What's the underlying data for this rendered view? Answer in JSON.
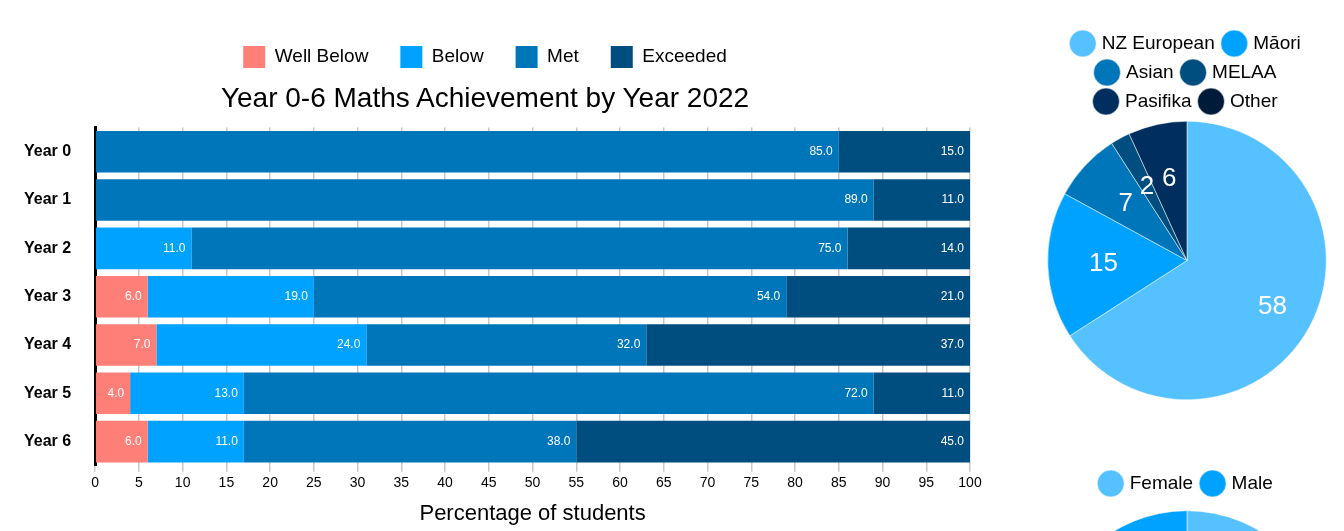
{
  "chart_data": [
    {
      "type": "bar",
      "title": "Year 0-6 Maths Achievement by Year 2022",
      "xlabel": "Percentage of students",
      "orientation": "horizontal",
      "stacked": true,
      "categories": [
        "Year 0",
        "Year 1",
        "Year 2",
        "Year 3",
        "Year 4",
        "Year 5",
        "Year 6"
      ],
      "series": [
        {
          "name": "Well Below",
          "color": "#fe7f78",
          "values": [
            null,
            null,
            null,
            6,
            7,
            4,
            6
          ],
          "value_labels": [
            null,
            null,
            null,
            "6.0",
            "7.0",
            "4.0",
            "6.0"
          ]
        },
        {
          "name": "Below",
          "color": "#00a2ff",
          "values": [
            null,
            null,
            11,
            19,
            24,
            13,
            11
          ],
          "value_labels": [
            null,
            null,
            "11.0",
            "19.0",
            "24.0",
            "13.0",
            "11.0"
          ]
        },
        {
          "name": "Met",
          "color": "#0076ba",
          "values": [
            85,
            89,
            75,
            54,
            32,
            72,
            38
          ],
          "value_labels": [
            "85.0",
            "89.0",
            "75.0",
            "54.0",
            "32.0",
            "72.0",
            "38.0"
          ]
        },
        {
          "name": "Exceeded",
          "color": "#004d80",
          "values": [
            15,
            11,
            14,
            21,
            37,
            11,
            45
          ],
          "value_labels": [
            "15.0",
            "11.0",
            "14.0",
            "21.0",
            "37.0",
            "11.0",
            "45.0"
          ]
        }
      ],
      "xlim": [
        0,
        100
      ],
      "xticks": [
        0,
        5,
        10,
        15,
        20,
        25,
        30,
        35,
        40,
        45,
        50,
        55,
        60,
        65,
        70,
        75,
        80,
        85,
        90,
        95,
        100
      ],
      "grid": "x",
      "legend": "top"
    },
    {
      "type": "pie",
      "categories": [
        "NZ European",
        "Māori",
        "Asian",
        "MELAA",
        "Pasifika",
        "Other"
      ],
      "values": [
        58,
        15,
        7,
        2,
        6,
        0
      ],
      "value_labels": [
        "58",
        "15",
        "7",
        "2",
        "6",
        null
      ],
      "colors": [
        "#56c1ff",
        "#00a2ff",
        "#0076ba",
        "#004d80",
        "#002f5f",
        "#001a3a"
      ],
      "legend": "top"
    },
    {
      "type": "pie",
      "categories": [
        "Female",
        "Male"
      ],
      "values": [
        50,
        50
      ],
      "colors": [
        "#56c1ff",
        "#00a2ff"
      ],
      "legend": "top"
    }
  ]
}
